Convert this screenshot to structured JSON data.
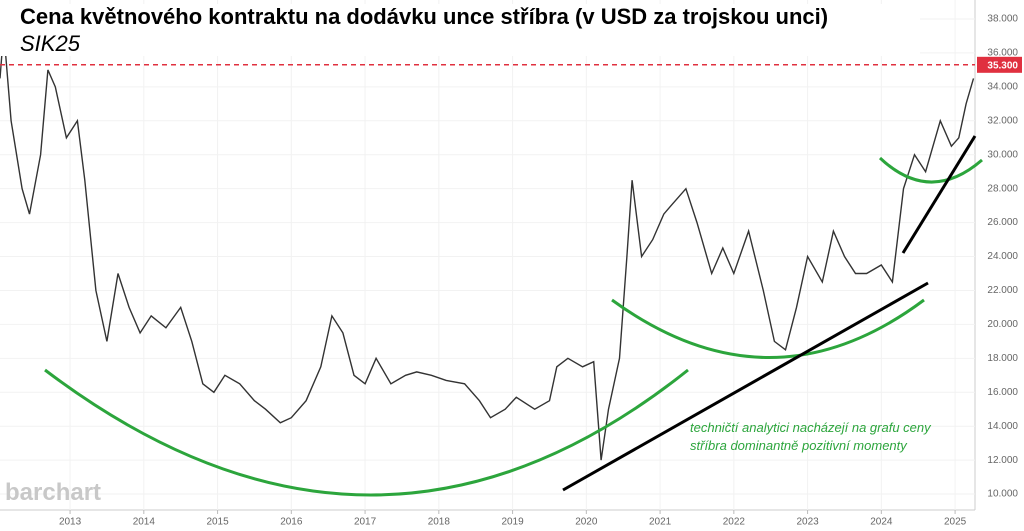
{
  "chart_data": {
    "type": "line",
    "title": "Cena květnového kontraktu na dodávku unce stříbra (v USD za trojskou unci)",
    "subtitle": "SIK25",
    "color": "#333333",
    "x": [
      2012.05,
      2012.1,
      2012.2,
      2012.35,
      2012.45,
      2012.6,
      2012.7,
      2012.8,
      2012.95,
      2013.1,
      2013.2,
      2013.35,
      2013.5,
      2013.65,
      2013.8,
      2013.95,
      2014.1,
      2014.3,
      2014.5,
      2014.65,
      2014.8,
      2014.95,
      2015.1,
      2015.3,
      2015.5,
      2015.65,
      2015.85,
      2016.0,
      2016.2,
      2016.4,
      2016.55,
      2016.7,
      2016.85,
      2017.0,
      2017.15,
      2017.35,
      2017.55,
      2017.7,
      2017.9,
      2018.1,
      2018.35,
      2018.55,
      2018.7,
      2018.9,
      2019.05,
      2019.3,
      2019.5,
      2019.6,
      2019.75,
      2019.95,
      2020.1,
      2020.2,
      2020.3,
      2020.45,
      2020.55,
      2020.62,
      2020.75,
      2020.9,
      2021.05,
      2021.15,
      2021.35,
      2021.5,
      2021.7,
      2021.85,
      2022.0,
      2022.2,
      2022.4,
      2022.55,
      2022.7,
      2022.85,
      2023.0,
      2023.2,
      2023.35,
      2023.5,
      2023.65,
      2023.8,
      2024.0,
      2024.15,
      2024.3,
      2024.45,
      2024.6,
      2024.8,
      2024.95,
      2025.05,
      2025.15,
      2025.25
    ],
    "values": [
      34.5,
      37.3,
      32,
      28,
      26.5,
      30,
      35,
      34,
      31,
      32,
      28.5,
      22,
      19,
      23,
      21,
      19.5,
      20.5,
      19.8,
      21,
      19,
      16.5,
      16,
      17,
      16.5,
      15.5,
      15,
      14.2,
      14.5,
      15.5,
      17.5,
      20.5,
      19.5,
      17,
      16.5,
      18,
      16.5,
      17,
      17.2,
      17,
      16.7,
      16.5,
      15.5,
      14.5,
      15,
      15.7,
      15,
      15.5,
      17.5,
      18,
      17.5,
      17.8,
      12,
      15,
      18,
      24,
      28.5,
      24,
      25,
      26.5,
      27,
      28,
      26,
      23,
      24.5,
      23,
      25.5,
      22,
      19,
      18.5,
      21,
      24,
      22.5,
      25.5,
      24,
      23,
      23,
      23.5,
      22.5,
      28,
      30,
      29,
      32,
      30.5,
      31,
      33,
      34.5
    ],
    "xlim": [
      2012.05,
      2025.27
    ],
    "ylim": [
      9.06,
      39.12
    ],
    "xticks": [
      2013,
      2014,
      2015,
      2016,
      2017,
      2018,
      2019,
      2020,
      2021,
      2022,
      2023,
      2024,
      2025
    ],
    "yticks": [
      {
        "value": 10,
        "label": "10.000"
      },
      {
        "value": 12,
        "label": "12.000"
      },
      {
        "value": 14,
        "label": "14.000"
      },
      {
        "value": 16,
        "label": "16.000"
      },
      {
        "value": 18,
        "label": "18.000"
      },
      {
        "value": 20,
        "label": "20.000"
      },
      {
        "value": 22,
        "label": "22.000"
      },
      {
        "value": 24,
        "label": "24.000"
      },
      {
        "value": 26,
        "label": "26.000"
      },
      {
        "value": 28,
        "label": "28.000"
      },
      {
        "value": 30,
        "label": "30.000"
      },
      {
        "value": 32,
        "label": "32.000"
      },
      {
        "value": 34,
        "label": "34.000"
      },
      {
        "value": 36,
        "label": "36.000"
      },
      {
        "value": 38,
        "label": "38.000"
      }
    ],
    "grid": true,
    "reference_line": {
      "value": 35.3,
      "label": "35.300",
      "color": "#e0303f"
    },
    "annotation": [
      "techničtí analytici nacházejí na grafu ceny",
      "stříbra dominantně pozitivní momenty"
    ],
    "watermark": "barchart"
  }
}
